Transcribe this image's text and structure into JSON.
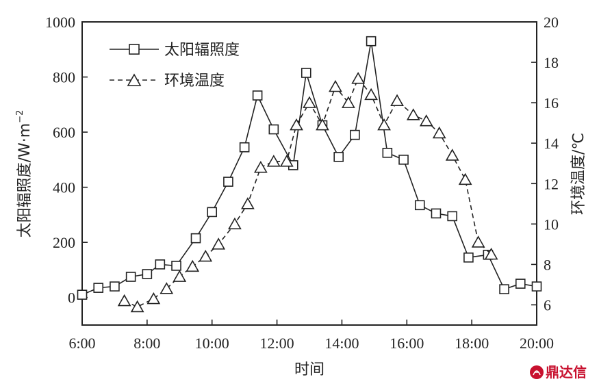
{
  "chart_data": {
    "type": "line",
    "xlabel": "时间",
    "ylabel_left": "太阳辐照度/W·m⁻²",
    "ylabel_left_main": "太阳辐照度/W·m",
    "ylabel_left_sup": "−2",
    "ylabel_right": "环境温度/℃",
    "x_ticks": [
      "6:00",
      "8:00",
      "10:00",
      "12:00",
      "14:00",
      "16:00",
      "18:00",
      "20:00"
    ],
    "x_tick_values": [
      6,
      8,
      10,
      12,
      14,
      16,
      18,
      20
    ],
    "xlim": [
      6,
      20
    ],
    "ylim_left": [
      -100,
      1000
    ],
    "ylim_right": [
      5,
      20
    ],
    "y_left_ticks": [
      0,
      200,
      400,
      600,
      800,
      1000
    ],
    "y_right_ticks": [
      6,
      8,
      10,
      12,
      14,
      16,
      18,
      20
    ],
    "legend_position": "top-left",
    "series": [
      {
        "name": "太阳辐照度",
        "axis": "left",
        "marker": "square",
        "line": "solid",
        "x": [
          6.0,
          6.5,
          7.0,
          7.5,
          8.0,
          8.4,
          8.9,
          9.5,
          10.0,
          10.5,
          11.0,
          11.4,
          11.9,
          12.5,
          12.9,
          13.4,
          13.9,
          14.4,
          14.9,
          15.4,
          15.9,
          16.4,
          16.9,
          17.4,
          17.9,
          18.5,
          19.0,
          19.5,
          20.0
        ],
        "values": [
          10,
          35,
          40,
          75,
          85,
          120,
          115,
          215,
          310,
          420,
          545,
          733,
          610,
          480,
          815,
          625,
          510,
          590,
          930,
          525,
          500,
          335,
          305,
          295,
          145,
          155,
          30,
          50,
          40
        ]
      },
      {
        "name": "环境温度",
        "axis": "right",
        "marker": "triangle",
        "line": "dashed",
        "x": [
          7.3,
          7.7,
          8.2,
          8.6,
          9.0,
          9.4,
          9.8,
          10.2,
          10.7,
          11.1,
          11.5,
          11.9,
          12.3,
          12.6,
          13.0,
          13.4,
          13.8,
          14.2,
          14.5,
          14.9,
          15.3,
          15.7,
          16.2,
          16.6,
          17.0,
          17.4,
          17.8,
          18.2,
          18.6
        ],
        "values": [
          6.2,
          5.9,
          6.3,
          6.8,
          7.4,
          7.9,
          8.4,
          9.0,
          10.0,
          11.0,
          12.8,
          13.1,
          13.1,
          14.9,
          16.0,
          14.9,
          16.8,
          16.0,
          17.2,
          16.4,
          14.9,
          16.1,
          15.4,
          15.1,
          14.5,
          13.4,
          12.2,
          9.1,
          8.5
        ]
      }
    ]
  },
  "watermark": {
    "icon": "flame-logo-icon",
    "text": "鼎达信",
    "color": "#c8102e"
  }
}
